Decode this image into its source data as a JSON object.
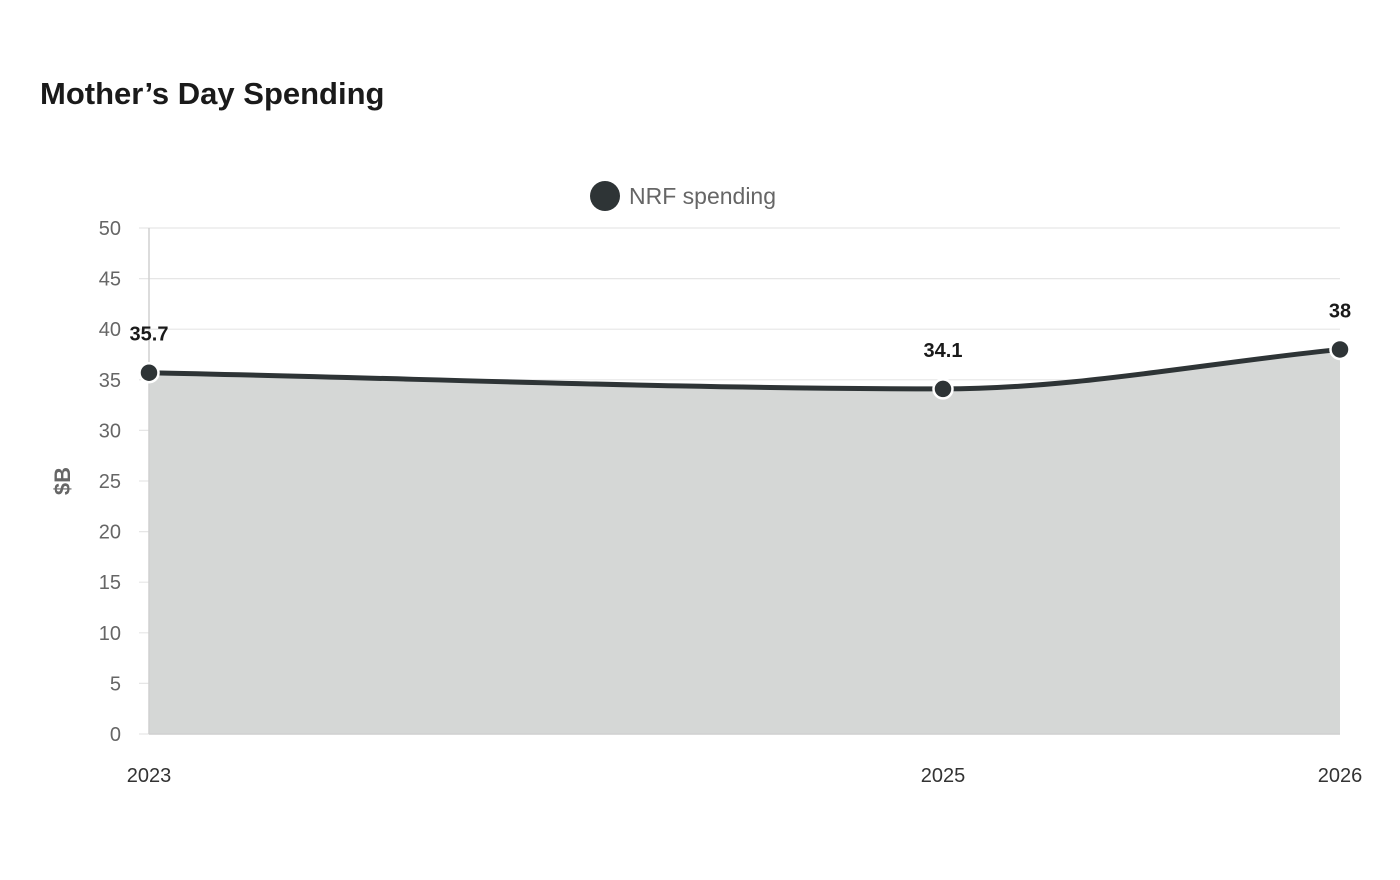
{
  "chart_data": {
    "type": "area",
    "title": "Mother’s Day Spending",
    "ylabel": "$B",
    "xlabel": "",
    "categories": [
      "2023",
      "2025",
      "2026"
    ],
    "series": [
      {
        "name": "NRF spending",
        "values": [
          35.7,
          34.1,
          38
        ],
        "data_labels": [
          "35.7",
          "34.1",
          "38"
        ],
        "color": "#2e3436",
        "fill_color": "#d5d7d6"
      }
    ],
    "ylim": [
      0,
      50
    ],
    "yticks": [
      0,
      5,
      10,
      15,
      20,
      25,
      30,
      35,
      40,
      45,
      50
    ],
    "grid": true,
    "legend_position": "top-center",
    "smooth": true
  }
}
